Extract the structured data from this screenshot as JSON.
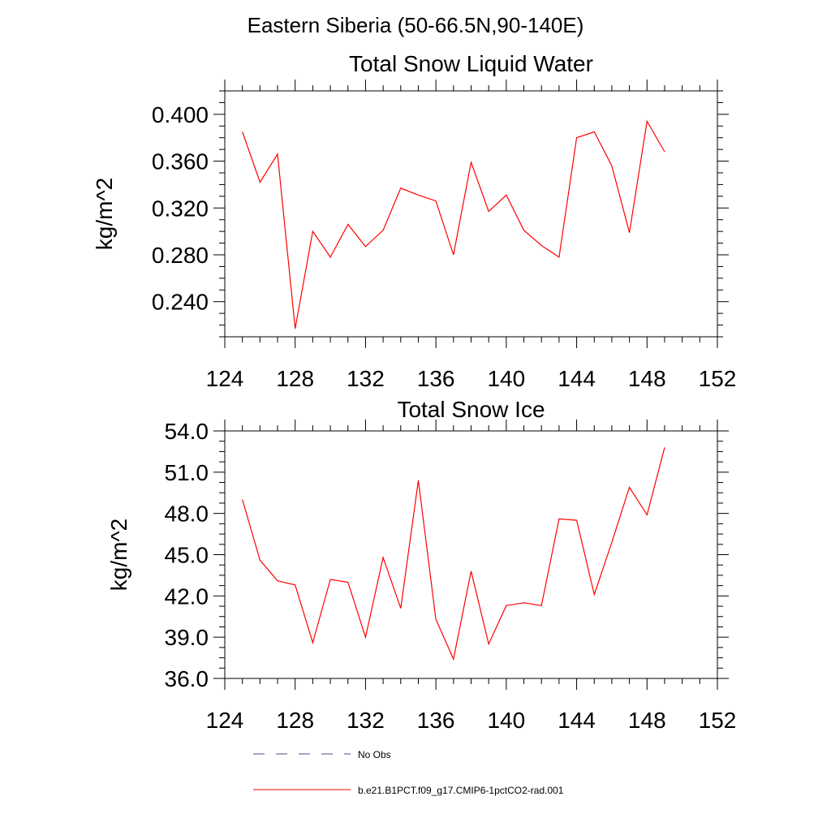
{
  "main_title": "Eastern Siberia (50-66.5N,90-140E)",
  "legend": [
    {
      "label": "No Obs",
      "style": "dashed",
      "color": "#4a4a8a"
    },
    {
      "label": "b.e21.B1PCT.f09_g17.CMIP6-1pctCO2-rad.001",
      "style": "solid",
      "color": "#ff0000"
    }
  ],
  "chart_data": [
    {
      "type": "line",
      "title": "Total Snow Liquid Water",
      "ylabel": "kg/m^2",
      "xlim": [
        124,
        152
      ],
      "ylim": [
        0.21,
        0.42
      ],
      "xticks": [
        124,
        128,
        132,
        136,
        140,
        144,
        148,
        152
      ],
      "yticks": [
        0.24,
        0.28,
        0.32,
        0.36,
        0.4
      ],
      "ytick_labels": [
        "0.240",
        "0.280",
        "0.320",
        "0.360",
        "0.400"
      ],
      "series": [
        {
          "color": "#ff0000",
          "x": [
            125,
            126,
            127,
            128,
            129,
            130,
            131,
            132,
            133,
            134,
            135,
            136,
            137,
            138,
            139,
            140,
            141,
            142,
            143,
            144,
            145,
            146,
            147,
            148,
            149
          ],
          "values": [
            0.385,
            0.342,
            0.366,
            0.217,
            0.3,
            0.278,
            0.306,
            0.287,
            0.301,
            0.337,
            0.331,
            0.326,
            0.28,
            0.359,
            0.317,
            0.331,
            0.301,
            0.288,
            0.278,
            0.38,
            0.385,
            0.356,
            0.299,
            0.394,
            0.368
          ]
        }
      ]
    },
    {
      "type": "line",
      "title": "Total Snow Ice",
      "ylabel": "kg/m^2",
      "xlim": [
        124,
        152
      ],
      "ylim": [
        36.0,
        54.0
      ],
      "xticks": [
        124,
        128,
        132,
        136,
        140,
        144,
        148,
        152
      ],
      "yticks": [
        36.0,
        39.0,
        42.0,
        45.0,
        48.0,
        51.0,
        54.0
      ],
      "ytick_labels": [
        "36.0",
        "39.0",
        "42.0",
        "45.0",
        "48.0",
        "51.0",
        "54.0"
      ],
      "series": [
        {
          "color": "#ff0000",
          "x": [
            125,
            126,
            127,
            128,
            129,
            130,
            131,
            132,
            133,
            134,
            135,
            136,
            137,
            138,
            139,
            140,
            141,
            142,
            143,
            144,
            145,
            146,
            147,
            148,
            149
          ],
          "values": [
            49.0,
            44.6,
            43.1,
            42.8,
            38.6,
            43.2,
            43.0,
            39.0,
            44.8,
            41.1,
            50.4,
            40.3,
            37.4,
            43.8,
            38.5,
            41.3,
            41.5,
            41.3,
            47.6,
            47.5,
            42.1,
            45.9,
            49.9,
            47.9,
            52.8
          ]
        }
      ]
    }
  ]
}
